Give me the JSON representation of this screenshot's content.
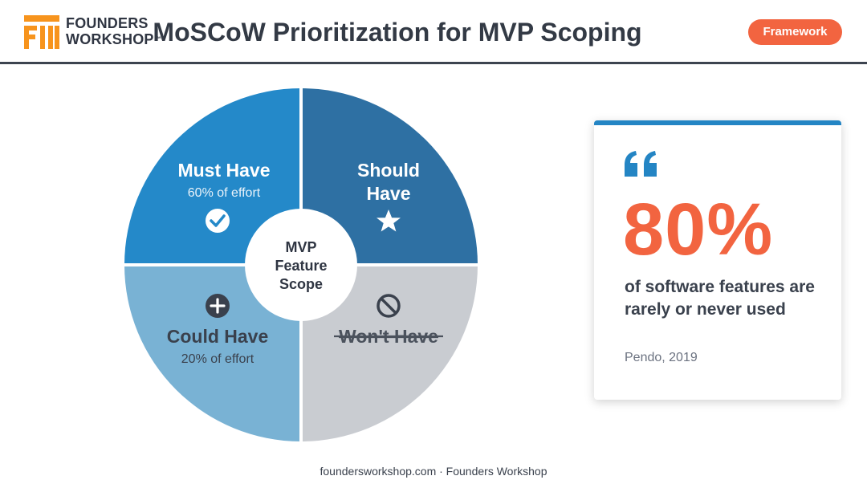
{
  "brand": {
    "line1": "FOUNDERS",
    "line2": "WORKSHOP",
    "tm": "™"
  },
  "header": {
    "title": "MoSCoW Prioritization for MVP Scoping",
    "tag": "Framework"
  },
  "diagram": {
    "center": {
      "line1": "MVP",
      "line2": "Feature",
      "line3": "Scope"
    },
    "quadrants": [
      {
        "label": "Must Have",
        "detail": "60% of effort",
        "icon": "check-circle-icon",
        "color": "#2489c9"
      },
      {
        "label_line1": "Should",
        "label_line2": "Have",
        "icon": "star-icon",
        "color": "#2e70a3"
      },
      {
        "label": "Could Have",
        "detail": "20% of effort",
        "icon": "plus-circle-icon",
        "color": "#79b2d4"
      },
      {
        "label": "Won't Have",
        "icon": "prohibited-icon",
        "color": "#c9ccd1",
        "strikethrough": true
      }
    ]
  },
  "card": {
    "icon": "quote-icon",
    "stat": "80%",
    "description": "of software features are rarely or never used",
    "source": "Pendo, 2019",
    "accent": "#2485c4",
    "stat_color": "#f26440"
  },
  "footer": {
    "text": "foundersworkshop.com · Founders Workshop"
  }
}
